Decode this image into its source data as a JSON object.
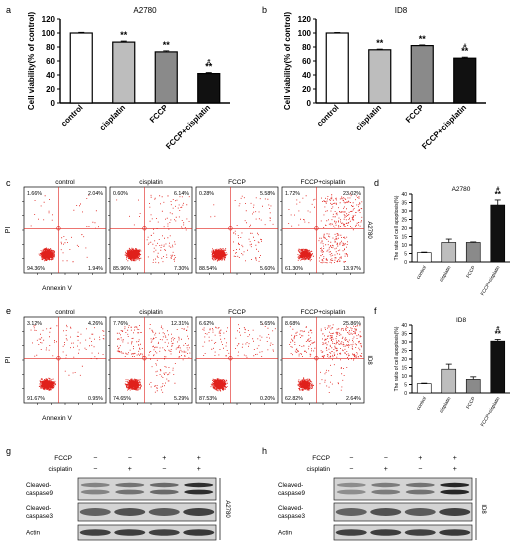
{
  "panels": {
    "a": "a",
    "b": "b",
    "c": "c",
    "d": "d",
    "e": "e",
    "f": "f",
    "g": "g",
    "h": "h"
  },
  "chart_data": [
    {
      "id": "a",
      "type": "bar",
      "title": "A2780",
      "ylabel": "Cell viability(% of control)",
      "ylim": [
        0,
        120
      ],
      "yticks": [
        0,
        20,
        40,
        60,
        80,
        100,
        120
      ],
      "categories": [
        "control",
        "cisplatin",
        "FCCP",
        "FCCP+cisplatin"
      ],
      "values": [
        100,
        87,
        73,
        42
      ],
      "errors": [
        1,
        1.5,
        1.5,
        1.5
      ],
      "annotations": [
        "",
        "**",
        "**",
        "#\n**"
      ],
      "colors": [
        "#ffffff",
        "#bdbdbd",
        "#8a8a8a",
        "#111111"
      ]
    },
    {
      "id": "b",
      "type": "bar",
      "title": "ID8",
      "ylabel": "Cell viability(% of control)",
      "ylim": [
        0,
        120
      ],
      "yticks": [
        0,
        20,
        40,
        60,
        80,
        100,
        120
      ],
      "categories": [
        "control",
        "cisplatin",
        "FCCP",
        "FCCP+cisplatin"
      ],
      "values": [
        100,
        76,
        82,
        64
      ],
      "errors": [
        0.8,
        1,
        1,
        1.5
      ],
      "annotations": [
        "",
        "**",
        "**",
        "#\n**"
      ],
      "colors": [
        "#ffffff",
        "#bdbdbd",
        "#8a8a8a",
        "#111111"
      ]
    },
    {
      "id": "d",
      "type": "bar",
      "title": "A2780",
      "ylabel": "The ratio of cell apoptosis(%)",
      "ylim": [
        0,
        40
      ],
      "yticks": [
        0,
        5,
        10,
        15,
        20,
        25,
        30,
        35,
        40
      ],
      "categories": [
        "control",
        "cisplatin",
        "FCCP",
        "FCCP+cisplatin"
      ],
      "values": [
        5.5,
        11.5,
        11.5,
        33.5
      ],
      "errors": [
        0.3,
        2,
        0.3,
        3
      ],
      "annotations": [
        "",
        "",
        "",
        "#\n**"
      ],
      "colors": [
        "#ffffff",
        "#bdbdbd",
        "#8a8a8a",
        "#111111"
      ]
    },
    {
      "id": "f",
      "type": "bar",
      "title": "ID8",
      "ylabel": "The ratio of cell apoptosis(%)",
      "ylim": [
        0,
        40
      ],
      "yticks": [
        0,
        5,
        10,
        15,
        20,
        25,
        30,
        35,
        40
      ],
      "categories": [
        "control",
        "cisplatin",
        "FCCP",
        "FCCP+cisplatin"
      ],
      "values": [
        5.5,
        14,
        8,
        30.5
      ],
      "errors": [
        0.3,
        3,
        1.5,
        1
      ],
      "annotations": [
        "",
        "",
        "",
        "#\n**"
      ],
      "colors": [
        "#ffffff",
        "#bdbdbd",
        "#8a8a8a",
        "#111111"
      ]
    }
  ],
  "flow": {
    "c": {
      "side_label": "A2780",
      "ylabel": "PI",
      "xlabel": "Annexin V",
      "plots": [
        {
          "title": "control",
          "ul": "1.66%",
          "ur": "2.04%",
          "ll": "94.36%",
          "lr": "1.94%"
        },
        {
          "title": "cisplatin",
          "ul": "0.60%",
          "ur": "6.14%",
          "ll": "85.96%",
          "lr": "7.30%"
        },
        {
          "title": "FCCP",
          "ul": "0.28%",
          "ur": "5.58%",
          "ll": "88.54%",
          "lr": "5.60%"
        },
        {
          "title": "FCCP+cisplatin",
          "ul": "1.72%",
          "ur": "23.02%",
          "ll": "61.30%",
          "lr": "13.97%"
        }
      ]
    },
    "e": {
      "side_label": "ID8",
      "ylabel": "PI",
      "xlabel": "Annexin V",
      "plots": [
        {
          "title": "control",
          "ul": "3.12%",
          "ur": "4.26%",
          "ll": "91.67%",
          "lr": "0.95%"
        },
        {
          "title": "cisplatin",
          "ul": "7.76%",
          "ur": "12.31%",
          "ll": "74.65%",
          "lr": "5.29%"
        },
        {
          "title": "FCCP",
          "ul": "6.62%",
          "ur": "5.65%",
          "ll": "87.53%",
          "lr": "0.20%"
        },
        {
          "title": "FCCP+cisplatin",
          "ul": "8.68%",
          "ur": "25.86%",
          "ll": "62.82%",
          "lr": "2.64%"
        }
      ]
    }
  },
  "blots": {
    "g": {
      "side_label": "A2780",
      "treat_rows": [
        {
          "label": "FCCP",
          "signs": [
            "−",
            "−",
            "+",
            "+"
          ]
        },
        {
          "label": "cisplatin",
          "signs": [
            "−",
            "+",
            "−",
            "+"
          ]
        }
      ],
      "bands": [
        "Cleaved-\ncaspase9",
        "Cleaved-\ncaspase3",
        "Actin"
      ]
    },
    "h": {
      "side_label": "ID8",
      "treat_rows": [
        {
          "label": "FCCP",
          "signs": [
            "−",
            "−",
            "+",
            "+"
          ]
        },
        {
          "label": "cisplatin",
          "signs": [
            "−",
            "+",
            "−",
            "+"
          ]
        }
      ],
      "bands": [
        "Cleaved-\ncaspase9",
        "Cleaved-\ncaspase3",
        "Actin"
      ]
    }
  }
}
